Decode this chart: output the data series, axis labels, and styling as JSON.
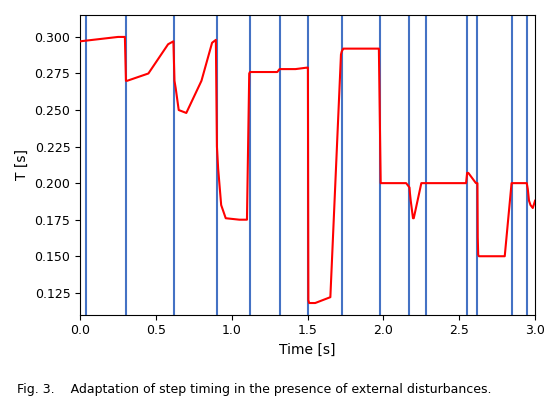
{
  "title": "",
  "xlabel": "Time [s]",
  "ylabel": "T [s]",
  "xlim": [
    0.0,
    3.0
  ],
  "ylim": [
    0.11,
    0.315
  ],
  "yticks": [
    0.125,
    0.15,
    0.175,
    0.2,
    0.225,
    0.25,
    0.275,
    0.3
  ],
  "xticks": [
    0.0,
    0.5,
    1.0,
    1.5,
    2.0,
    2.5,
    3.0
  ],
  "vline_color": "#4472c4",
  "red_color": "#ff0000",
  "vline_positions": [
    0.04,
    0.3,
    0.62,
    0.9,
    1.12,
    1.32,
    1.5,
    1.73,
    1.98,
    2.17,
    2.28,
    2.55,
    2.62,
    2.85,
    2.95
  ],
  "red_curve": [
    [
      0.0,
      0.297
    ],
    [
      0.25,
      0.3
    ],
    [
      0.295,
      0.3
    ],
    [
      0.302,
      0.27
    ],
    [
      0.31,
      0.27
    ],
    [
      0.45,
      0.275
    ],
    [
      0.58,
      0.295
    ],
    [
      0.615,
      0.297
    ],
    [
      0.622,
      0.27
    ],
    [
      0.63,
      0.265
    ],
    [
      0.65,
      0.25
    ],
    [
      0.7,
      0.248
    ],
    [
      0.8,
      0.27
    ],
    [
      0.87,
      0.296
    ],
    [
      0.895,
      0.298
    ],
    [
      0.902,
      0.225
    ],
    [
      0.91,
      0.21
    ],
    [
      0.93,
      0.185
    ],
    [
      0.96,
      0.176
    ],
    [
      1.05,
      0.175
    ],
    [
      1.1,
      0.175
    ],
    [
      1.115,
      0.275
    ],
    [
      1.12,
      0.276
    ],
    [
      1.125,
      0.276
    ],
    [
      1.3,
      0.276
    ],
    [
      1.315,
      0.278
    ],
    [
      1.32,
      0.278
    ],
    [
      1.325,
      0.278
    ],
    [
      1.42,
      0.278
    ],
    [
      1.495,
      0.279
    ],
    [
      1.502,
      0.279
    ],
    [
      1.505,
      0.12
    ],
    [
      1.51,
      0.118
    ],
    [
      1.55,
      0.118
    ],
    [
      1.6,
      0.12
    ],
    [
      1.65,
      0.122
    ],
    [
      1.72,
      0.288
    ],
    [
      1.725,
      0.29
    ],
    [
      1.73,
      0.291
    ],
    [
      1.735,
      0.292
    ],
    [
      1.74,
      0.292
    ],
    [
      1.97,
      0.292
    ],
    [
      1.982,
      0.2
    ],
    [
      1.99,
      0.2
    ],
    [
      2.0,
      0.2
    ],
    [
      2.15,
      0.2
    ],
    [
      2.172,
      0.197
    ],
    [
      2.175,
      0.193
    ],
    [
      2.18,
      0.188
    ],
    [
      2.195,
      0.176
    ],
    [
      2.2,
      0.176
    ],
    [
      2.25,
      0.2
    ],
    [
      2.275,
      0.2
    ],
    [
      2.28,
      0.2
    ],
    [
      2.285,
      0.2
    ],
    [
      2.5,
      0.2
    ],
    [
      2.545,
      0.2
    ],
    [
      2.552,
      0.207
    ],
    [
      2.555,
      0.207
    ],
    [
      2.56,
      0.207
    ],
    [
      2.61,
      0.2
    ],
    [
      2.62,
      0.2
    ],
    [
      2.622,
      0.163
    ],
    [
      2.625,
      0.151
    ],
    [
      2.63,
      0.15
    ],
    [
      2.7,
      0.15
    ],
    [
      2.8,
      0.15
    ],
    [
      2.845,
      0.2
    ],
    [
      2.85,
      0.2
    ],
    [
      2.855,
      0.2
    ],
    [
      2.93,
      0.2
    ],
    [
      2.945,
      0.2
    ],
    [
      2.952,
      0.196
    ],
    [
      2.955,
      0.193
    ],
    [
      2.96,
      0.188
    ],
    [
      2.97,
      0.185
    ],
    [
      2.985,
      0.183
    ],
    [
      3.0,
      0.188
    ]
  ],
  "caption": "Fig. 3.    Adaptation of step timing in the presence of external disturbances.",
  "bg_color": "#ffffff"
}
